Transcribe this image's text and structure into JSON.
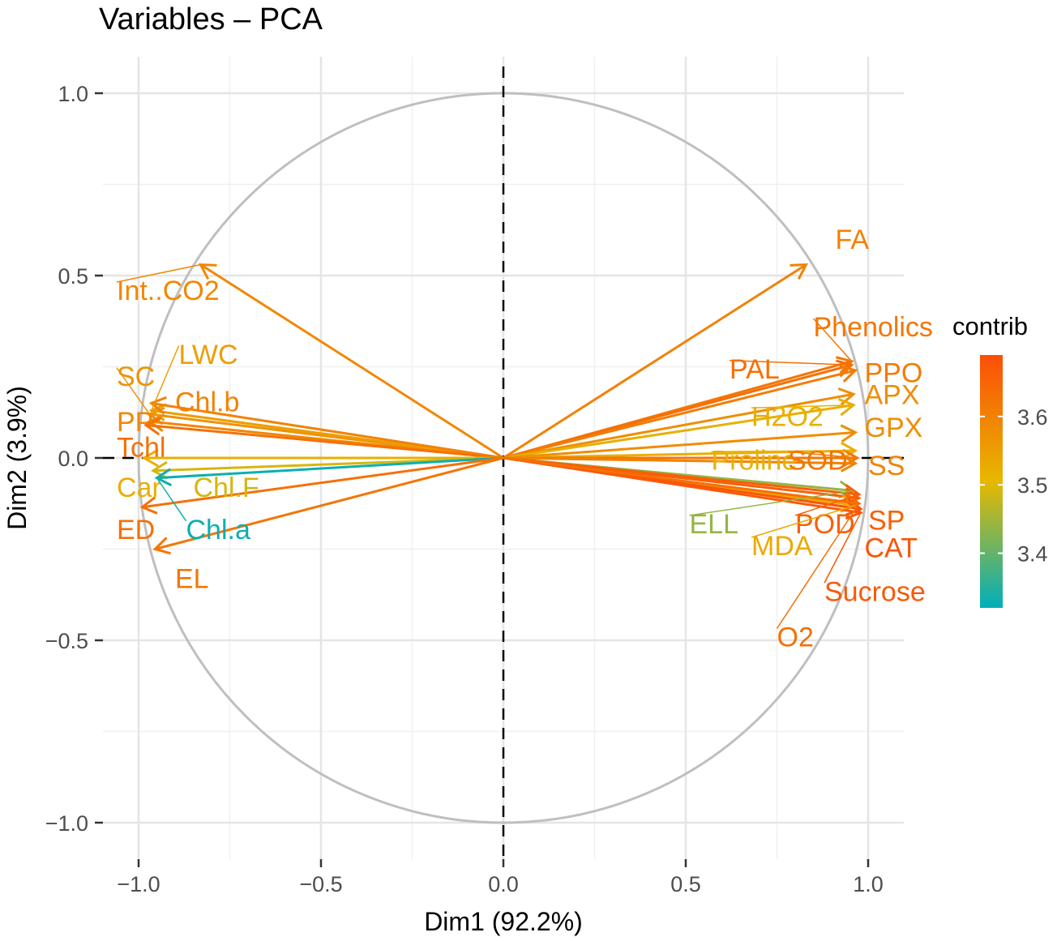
{
  "chart_data": {
    "type": "scatter",
    "subtype": "pca-variable-correlation-circle",
    "title": "Variables – PCA",
    "xlabel": "Dim1 (92.2%)",
    "ylabel": "Dim2 (3.9%)",
    "xlim": [
      -1.0,
      1.0
    ],
    "ylim": [
      -1.0,
      1.0
    ],
    "x_ticks": [
      -1.0,
      -0.5,
      0.0,
      0.5,
      1.0
    ],
    "x_tick_labels": [
      "−1.0",
      "−0.5",
      "0.0",
      "0.5",
      "1.0"
    ],
    "y_ticks": [
      1.0,
      0.5,
      0.0,
      -0.5,
      -1.0
    ],
    "y_tick_labels": [
      "1.0",
      "0.5",
      "0.0",
      "−0.5",
      "−1.0"
    ],
    "grid": true,
    "legend": {
      "title": "contrib",
      "placement": "right",
      "type": "colorbar",
      "ticks": [
        3.6,
        3.5,
        3.4
      ],
      "tick_labels": [
        "3.6",
        "3.5",
        "3.4"
      ],
      "range": [
        3.32,
        3.69
      ],
      "colors": [
        "#00AFBB",
        "#E7B800",
        "#FC4E07"
      ]
    },
    "reference_lines": [
      "x = 0 dashed",
      "y = 0 dashed"
    ],
    "unit_circle": true,
    "variables": [
      {
        "name": "FA",
        "x": 0.83,
        "y": 0.53,
        "contrib": 3.6,
        "label_x": 0.91,
        "label_y": 0.6
      },
      {
        "name": "Phenolics",
        "x": 0.955,
        "y": 0.265,
        "contrib": 3.62,
        "label_x": 0.85,
        "label_y": 0.36
      },
      {
        "name": "PAL",
        "x": 0.955,
        "y": 0.255,
        "contrib": 3.63,
        "label_x": 0.62,
        "label_y": 0.245
      },
      {
        "name": "PPO",
        "x": 0.965,
        "y": 0.24,
        "contrib": 3.61,
        "label_x": 0.99,
        "label_y": 0.235
      },
      {
        "name": "APX",
        "x": 0.96,
        "y": 0.175,
        "contrib": 3.58,
        "label_x": 0.99,
        "label_y": 0.175
      },
      {
        "name": "H2O2",
        "x": 0.96,
        "y": 0.145,
        "contrib": 3.52,
        "label_x": 0.68,
        "label_y": 0.115
      },
      {
        "name": "GPX",
        "x": 0.965,
        "y": 0.07,
        "contrib": 3.58,
        "label_x": 0.99,
        "label_y": 0.085
      },
      {
        "name": "Proline",
        "x": 0.965,
        "y": 0.02,
        "contrib": 3.52,
        "label_x": 0.57,
        "label_y": -0.005
      },
      {
        "name": "SOD",
        "x": 0.97,
        "y": 0.0,
        "contrib": 3.62,
        "label_x": 0.78,
        "label_y": -0.005
      },
      {
        "name": "SS",
        "x": 0.965,
        "y": -0.015,
        "contrib": 3.6,
        "label_x": 1.0,
        "label_y": -0.02
      },
      {
        "name": "ELL",
        "x": 0.96,
        "y": -0.09,
        "contrib": 3.44,
        "label_x": 0.51,
        "label_y": -0.18
      },
      {
        "name": "POD",
        "x": 0.975,
        "y": -0.1,
        "contrib": 3.66,
        "label_x": 0.8,
        "label_y": -0.18
      },
      {
        "name": "SP",
        "x": 0.975,
        "y": -0.11,
        "contrib": 3.66,
        "label_x": 1.0,
        "label_y": -0.17
      },
      {
        "name": "MDA",
        "x": 0.965,
        "y": -0.13,
        "contrib": 3.53,
        "label_x": 0.68,
        "label_y": -0.24
      },
      {
        "name": "CAT",
        "x": 0.98,
        "y": -0.14,
        "contrib": 3.68,
        "label_x": 0.99,
        "label_y": -0.245
      },
      {
        "name": "Sucrose",
        "x": 0.98,
        "y": -0.15,
        "contrib": 3.67,
        "label_x": 0.88,
        "label_y": -0.365
      },
      {
        "name": "O2",
        "x": 0.975,
        "y": -0.125,
        "contrib": 3.63,
        "label_x": 0.75,
        "label_y": -0.49
      },
      {
        "name": "Int..CO2",
        "x": -0.83,
        "y": 0.53,
        "contrib": 3.59,
        "label_x": -1.06,
        "label_y": 0.46
      },
      {
        "name": "SC",
        "x": -0.97,
        "y": 0.12,
        "contrib": 3.57,
        "label_x": -1.06,
        "label_y": 0.225
      },
      {
        "name": "LWC",
        "x": -0.965,
        "y": 0.13,
        "contrib": 3.55,
        "label_x": -0.89,
        "label_y": 0.285
      },
      {
        "name": "Chl.b",
        "x": -0.965,
        "y": 0.15,
        "contrib": 3.6,
        "label_x": -0.9,
        "label_y": 0.155
      },
      {
        "name": "PP",
        "x": -0.97,
        "y": 0.1,
        "contrib": 3.59,
        "label_x": -1.06,
        "label_y": 0.1
      },
      {
        "name": "Tchl",
        "x": -0.98,
        "y": 0.09,
        "contrib": 3.63,
        "label_x": -1.06,
        "label_y": 0.03
      },
      {
        "name": "Car",
        "x": -0.985,
        "y": 0.0,
        "contrib": 3.52,
        "label_x": -1.06,
        "label_y": -0.08
      },
      {
        "name": "Chl.F",
        "x": -0.96,
        "y": -0.035,
        "contrib": 3.49,
        "label_x": -0.85,
        "label_y": -0.08
      },
      {
        "name": "Chl.a",
        "x": -0.95,
        "y": -0.055,
        "contrib": 3.33,
        "label_x": -0.87,
        "label_y": -0.195
      },
      {
        "name": "ED",
        "x": -0.99,
        "y": -0.135,
        "contrib": 3.63,
        "label_x": -1.06,
        "label_y": -0.195
      },
      {
        "name": "EL",
        "x": -0.955,
        "y": -0.25,
        "contrib": 3.62,
        "label_x": -0.9,
        "label_y": -0.33
      }
    ]
  }
}
